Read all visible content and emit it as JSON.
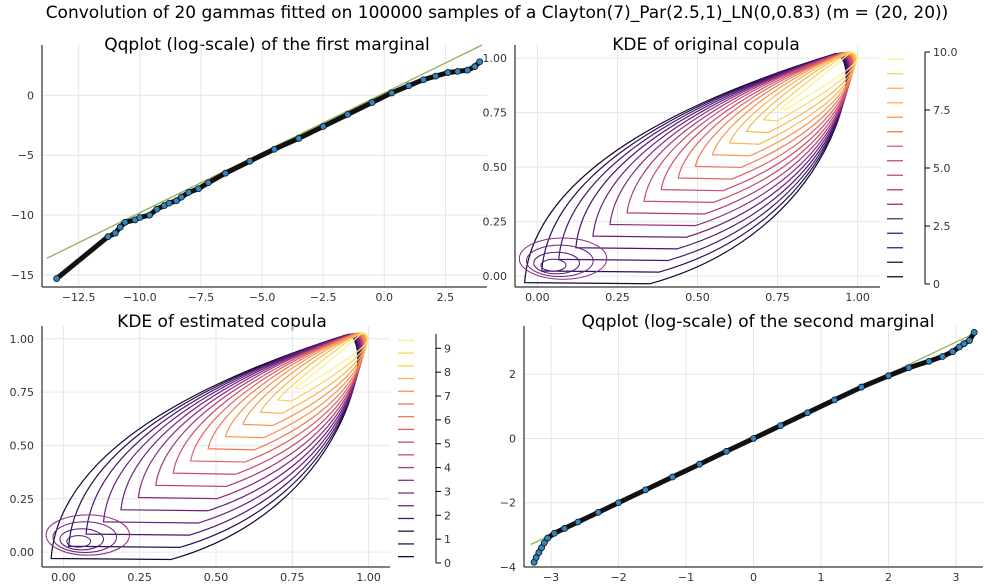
{
  "figure": {
    "suptitle": "Convolution of 20 gammas fitted on 100000 samples of a Clayton(7)_Par(2.5,1)_LN(0,0.83) (m = (20, 20))"
  },
  "chart_data": [
    {
      "type": "scatter",
      "title": "Qqplot (log-scale) of the first marginal",
      "xlabel": "",
      "ylabel": "",
      "xlim": [
        -14,
        4.2
      ],
      "ylim": [
        -16,
        4.2
      ],
      "xticks": [
        -12.5,
        -10.0,
        -7.5,
        -5.0,
        -2.5,
        0.0,
        2.5
      ],
      "xtick_labels": [
        "−12.5",
        "−10.0",
        "−7.5",
        "−5.0",
        "−2.5",
        "0.0",
        "2.5"
      ],
      "yticks": [
        0,
        -5,
        -10,
        -15
      ],
      "ytick_labels": [
        "0",
        "−5",
        "−10",
        "−15"
      ],
      "grid": true,
      "line": {
        "x": [
          -13.8,
          4.0
        ],
        "y": [
          -13.6,
          4.2
        ],
        "color": "#8fb25b"
      },
      "points": {
        "color": "#2f86c7",
        "x": [
          -13.4,
          -11.3,
          -11.0,
          -10.8,
          -10.6,
          -10.2,
          -10.0,
          -9.6,
          -9.3,
          -9.0,
          -8.8,
          -8.5,
          -8.3,
          -8.0,
          -7.6,
          -7.2,
          -6.5,
          -5.5,
          -4.5,
          -3.5,
          -2.5,
          -1.5,
          -0.5,
          0.3,
          1.0,
          1.6,
          2.1,
          2.6,
          3.0,
          3.4,
          3.7,
          3.9
        ],
        "y": [
          -15.3,
          -11.8,
          -11.5,
          -11.0,
          -10.6,
          -10.4,
          -10.2,
          -10.0,
          -9.5,
          -9.2,
          -9.0,
          -8.8,
          -8.5,
          -8.1,
          -7.8,
          -7.3,
          -6.5,
          -5.5,
          -4.5,
          -3.6,
          -2.6,
          -1.6,
          -0.6,
          0.2,
          0.8,
          1.3,
          1.6,
          1.9,
          2.0,
          2.1,
          2.4,
          2.8
        ]
      }
    },
    {
      "type": "contour",
      "title": "KDE of original copula",
      "xlabel": "",
      "ylabel": "",
      "xlim": [
        -0.07,
        1.07
      ],
      "ylim": [
        -0.05,
        1.06
      ],
      "xticks": [
        0.0,
        0.25,
        0.5,
        0.75,
        1.0
      ],
      "xtick_labels": [
        "0.00",
        "0.25",
        "0.50",
        "0.75",
        "1.00"
      ],
      "yticks": [
        0.0,
        0.25,
        0.5,
        0.75,
        1.0
      ],
      "ytick_labels": [
        "0.00",
        "0.25",
        "0.50",
        "0.75",
        "1.00"
      ],
      "grid": true,
      "colorbar": {
        "min": 0,
        "max": 10,
        "ticks": [
          0,
          2.5,
          5.0,
          7.5,
          10.0
        ],
        "tick_labels": [
          "0",
          "2.5",
          "5.0",
          "7.5",
          "10.0"
        ],
        "levels": 16
      },
      "contours": {
        "count": 16,
        "max_level": 10
      }
    },
    {
      "type": "contour",
      "title": "KDE of estimated copula",
      "xlabel": "",
      "ylabel": "",
      "xlim": [
        -0.07,
        1.07
      ],
      "ylim": [
        -0.07,
        1.06
      ],
      "xticks": [
        0.0,
        0.25,
        0.5,
        0.75,
        1.0
      ],
      "xtick_labels": [
        "0.00",
        "0.25",
        "0.50",
        "0.75",
        "1.00"
      ],
      "yticks": [
        0.0,
        0.25,
        0.5,
        0.75,
        1.0
      ],
      "ytick_labels": [
        "0.00",
        "0.25",
        "0.50",
        "0.75",
        "1.00"
      ],
      "grid": true,
      "colorbar": {
        "min": 0,
        "max": 9.6,
        "ticks": [
          0,
          1,
          2,
          3,
          4,
          5,
          6,
          7,
          8,
          9
        ],
        "tick_labels": [
          "0",
          "1",
          "2",
          "3",
          "4",
          "5",
          "6",
          "7",
          "8",
          "9"
        ],
        "levels": 18
      },
      "contours": {
        "count": 15,
        "max_level": 9.6
      }
    },
    {
      "type": "scatter",
      "title": "Qqplot (log-scale) of the second marginal",
      "xlabel": "",
      "ylabel": "",
      "xlim": [
        -3.4,
        3.4
      ],
      "ylim": [
        -4,
        3.5
      ],
      "xticks": [
        -3,
        -2,
        -1,
        0,
        1,
        2,
        3
      ],
      "xtick_labels": [
        "−3",
        "−2",
        "−1",
        "0",
        "1",
        "2",
        "3"
      ],
      "yticks": [
        2,
        0,
        -2,
        -4
      ],
      "ytick_labels": [
        "2",
        "0",
        "−2",
        "−4"
      ],
      "grid": true,
      "line": {
        "x": [
          -3.3,
          3.3
        ],
        "y": [
          -3.3,
          3.3
        ],
        "color": "#8fb25b"
      },
      "points": {
        "color": "#2f86c7",
        "x": [
          -3.25,
          -3.22,
          -3.18,
          -3.14,
          -3.1,
          -3.05,
          -2.95,
          -2.8,
          -2.6,
          -2.3,
          -2.0,
          -1.6,
          -1.2,
          -0.8,
          -0.4,
          0.0,
          0.4,
          0.8,
          1.2,
          1.6,
          2.0,
          2.3,
          2.6,
          2.8,
          2.95,
          3.05,
          3.12,
          3.2,
          3.27
        ],
        "y": [
          -3.85,
          -3.7,
          -3.55,
          -3.4,
          -3.25,
          -3.1,
          -2.95,
          -2.8,
          -2.6,
          -2.3,
          -2.0,
          -1.6,
          -1.2,
          -0.8,
          -0.4,
          0.0,
          0.4,
          0.8,
          1.2,
          1.6,
          1.95,
          2.2,
          2.4,
          2.55,
          2.7,
          2.85,
          2.95,
          3.05,
          3.3
        ]
      }
    }
  ]
}
